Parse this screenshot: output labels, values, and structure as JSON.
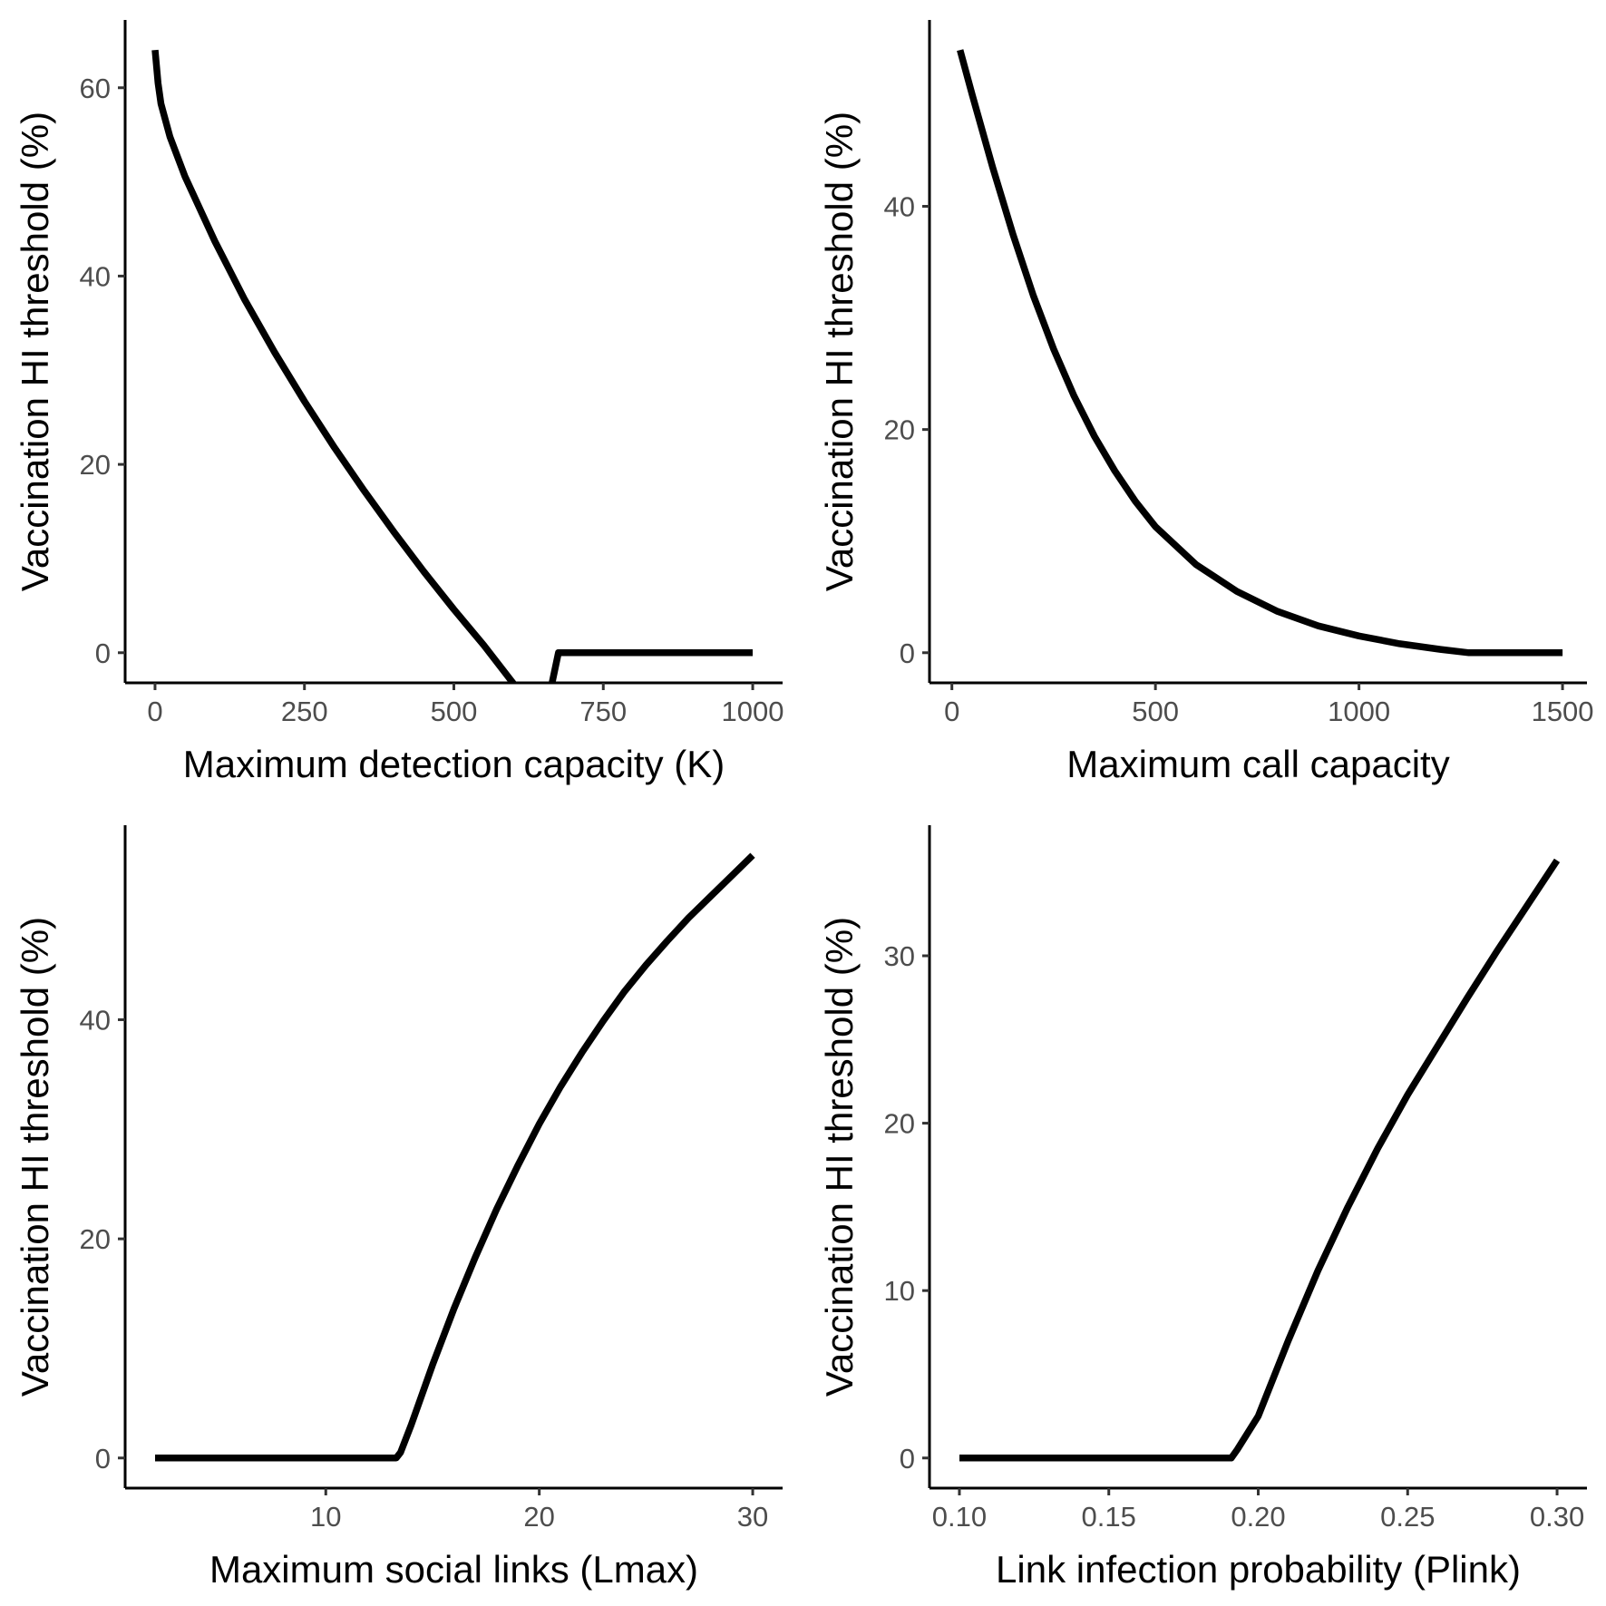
{
  "chart_data": [
    {
      "type": "line",
      "xlabel": "Maximum detection capacity (K)",
      "ylabel": "Vaccination HI threshold (%)",
      "xlim": [
        -50,
        1050
      ],
      "ylim": [
        -3.2,
        67.2
      ],
      "xticks": [
        0,
        250,
        500,
        750,
        1000
      ],
      "xtick_labels": [
        "0",
        "250",
        "500",
        "750",
        "1000"
      ],
      "yticks": [
        0,
        20,
        40,
        60
      ],
      "ytick_labels": [
        "0",
        "20",
        "40",
        "60"
      ],
      "grid": false,
      "series": [
        {
          "x": [
            0,
            5,
            10,
            25,
            50,
            100,
            150,
            200,
            250,
            300,
            350,
            400,
            450,
            500,
            550,
            600,
            650,
            675,
            700,
            800,
            900,
            1000
          ],
          "y": [
            64.0,
            60.5,
            58.3,
            54.8,
            50.6,
            43.7,
            37.5,
            31.9,
            26.7,
            21.8,
            17.2,
            12.8,
            8.6,
            4.6,
            0.8,
            -3.3,
            -7.5,
            0.0,
            0.0,
            0.0,
            0.0,
            0.0
          ]
        }
      ]
    },
    {
      "type": "line",
      "xlabel": "Maximum call capacity",
      "ylabel": "Vaccination HI threshold (%)",
      "xlim": [
        -55,
        1560
      ],
      "ylim": [
        -2.7,
        56.7
      ],
      "xticks": [
        0,
        500,
        1000,
        1500
      ],
      "xtick_labels": [
        "0",
        "500",
        "1000",
        "1500"
      ],
      "yticks": [
        0,
        20,
        40
      ],
      "ytick_labels": [
        "0",
        "20",
        "40"
      ],
      "grid": false,
      "series": [
        {
          "x": [
            20,
            50,
            100,
            150,
            200,
            250,
            300,
            350,
            400,
            450,
            500,
            600,
            700,
            800,
            900,
            1000,
            1100,
            1200,
            1270,
            1300,
            1400,
            1500
          ],
          "y": [
            54.0,
            50.0,
            43.5,
            37.5,
            32.0,
            27.2,
            23.0,
            19.4,
            16.3,
            13.6,
            11.3,
            7.9,
            5.5,
            3.7,
            2.4,
            1.5,
            0.8,
            0.3,
            0.0,
            0.0,
            0.0,
            0.0
          ]
        }
      ]
    },
    {
      "type": "line",
      "xlabel": "Maximum social links (Lmax)",
      "ylabel": "Vaccination HI threshold (%)",
      "xlim": [
        0.6,
        31.4
      ],
      "ylim": [
        -2.75,
        57.75
      ],
      "xticks": [
        10,
        20,
        30
      ],
      "xtick_labels": [
        "10",
        "20",
        "30"
      ],
      "yticks": [
        0,
        20,
        40
      ],
      "ytick_labels": [
        "0",
        "20",
        "40"
      ],
      "grid": false,
      "series": [
        {
          "x": [
            2,
            5,
            8,
            11,
            13.3,
            13.5,
            14,
            15,
            16,
            17,
            18,
            19,
            20,
            21,
            22,
            23,
            24,
            25,
            26,
            27,
            28,
            29,
            30
          ],
          "y": [
            0,
            0,
            0,
            0,
            0,
            0.5,
            3.0,
            8.5,
            13.6,
            18.3,
            22.7,
            26.7,
            30.5,
            33.9,
            37.0,
            39.9,
            42.6,
            45.0,
            47.2,
            49.3,
            51.2,
            53.1,
            55.0
          ]
        }
      ]
    },
    {
      "type": "line",
      "xlabel": "Link infection probability (Plink)",
      "ylabel": "Vaccination HI threshold (%)",
      "xlim": [
        0.09,
        0.31
      ],
      "ylim": [
        -1.8,
        37.8
      ],
      "xticks": [
        0.1,
        0.15,
        0.2,
        0.25,
        0.3
      ],
      "xtick_labels": [
        "0.10",
        "0.15",
        "0.20",
        "0.25",
        "0.30"
      ],
      "yticks": [
        0,
        10,
        20,
        30
      ],
      "ytick_labels": [
        "0",
        "10",
        "20",
        "30"
      ],
      "grid": false,
      "series": [
        {
          "x": [
            0.1,
            0.13,
            0.16,
            0.19,
            0.191,
            0.193,
            0.2,
            0.21,
            0.22,
            0.23,
            0.24,
            0.25,
            0.26,
            0.27,
            0.28,
            0.29,
            0.3
          ],
          "y": [
            0,
            0,
            0,
            0,
            0,
            0.5,
            2.5,
            7.0,
            11.2,
            15.0,
            18.5,
            21.7,
            24.6,
            27.5,
            30.3,
            33.0,
            35.7
          ]
        }
      ]
    }
  ]
}
